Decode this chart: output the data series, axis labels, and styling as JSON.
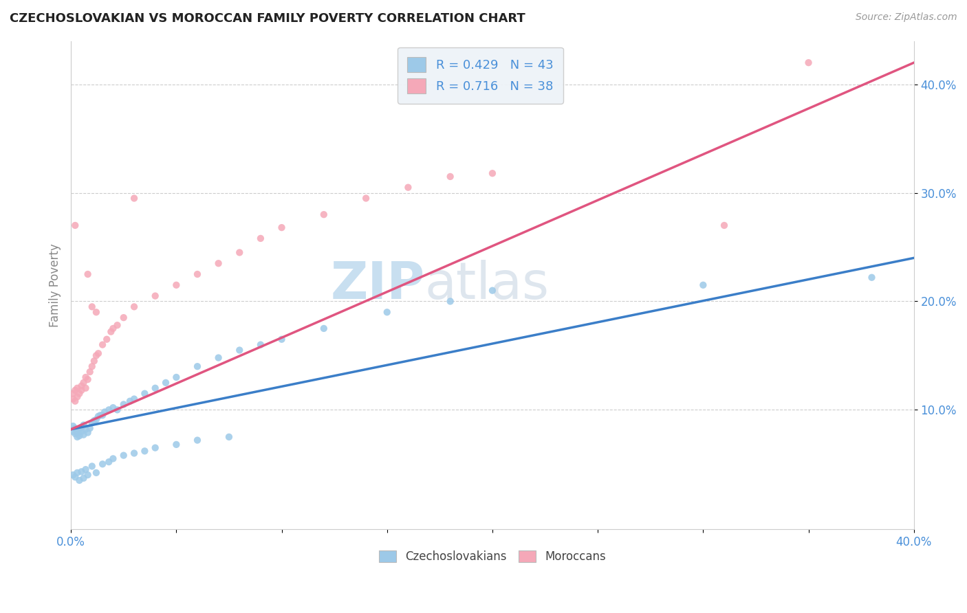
{
  "title": "CZECHOSLOVAKIAN VS MOROCCAN FAMILY POVERTY CORRELATION CHART",
  "source": "Source: ZipAtlas.com",
  "ylabel": "Family Poverty",
  "xlim": [
    0.0,
    0.4
  ],
  "ylim": [
    -0.01,
    0.44
  ],
  "yticks": [
    0.1,
    0.2,
    0.3,
    0.4
  ],
  "ytick_labels": [
    "10.0%",
    "20.0%",
    "30.0%",
    "40.0%"
  ],
  "xticks": [
    0.0,
    0.05,
    0.1,
    0.15,
    0.2,
    0.25,
    0.3,
    0.35,
    0.4
  ],
  "xtick_labels": [
    "0.0%",
    "",
    "",
    "",
    "",
    "",
    "",
    "",
    "40.0%"
  ],
  "czech_R": 0.429,
  "czech_N": 43,
  "moroccan_R": 0.716,
  "moroccan_N": 38,
  "czech_color": "#9DC9E8",
  "moroccan_color": "#F5A8B8",
  "czech_line_color": "#3B7EC8",
  "moroccan_line_color": "#E05580",
  "background_color": "#ffffff",
  "grid_color": "#cccccc",
  "title_color": "#222222",
  "axis_label_color": "#888888",
  "tick_label_color": "#4A90D9",
  "watermark_zip": "ZIP",
  "watermark_atlas": "atlas",
  "watermark_color": "#c8dff0",
  "legend_R_color": "#4A90D9",
  "legend_facecolor": "#eef3f8",
  "czech_line_x0": 0.0,
  "czech_line_y0": 0.082,
  "czech_line_x1": 0.4,
  "czech_line_y1": 0.24,
  "moroccan_line_x0": 0.0,
  "moroccan_line_y0": 0.082,
  "moroccan_line_x1": 0.4,
  "moroccan_line_y1": 0.42,
  "czech_x": [
    0.001,
    0.001,
    0.002,
    0.002,
    0.003,
    0.003,
    0.004,
    0.004,
    0.005,
    0.005,
    0.006,
    0.006,
    0.007,
    0.008,
    0.009,
    0.01,
    0.011,
    0.012,
    0.013,
    0.014,
    0.015,
    0.016,
    0.018,
    0.02,
    0.022,
    0.025,
    0.028,
    0.03,
    0.035,
    0.04,
    0.045,
    0.05,
    0.06,
    0.07,
    0.08,
    0.09,
    0.1,
    0.12,
    0.15,
    0.18,
    0.2,
    0.3,
    0.38
  ],
  "czech_y": [
    0.08,
    0.085,
    0.078,
    0.083,
    0.075,
    0.079,
    0.082,
    0.076,
    0.08,
    0.084,
    0.077,
    0.086,
    0.082,
    0.079,
    0.083,
    0.088,
    0.09,
    0.091,
    0.094,
    0.095,
    0.095,
    0.098,
    0.1,
    0.102,
    0.1,
    0.105,
    0.108,
    0.11,
    0.115,
    0.12,
    0.125,
    0.13,
    0.14,
    0.148,
    0.155,
    0.16,
    0.165,
    0.175,
    0.19,
    0.2,
    0.21,
    0.215,
    0.222
  ],
  "moroccan_x": [
    0.001,
    0.001,
    0.002,
    0.002,
    0.003,
    0.003,
    0.004,
    0.005,
    0.005,
    0.006,
    0.007,
    0.007,
    0.008,
    0.009,
    0.01,
    0.011,
    0.012,
    0.013,
    0.015,
    0.017,
    0.019,
    0.022,
    0.025,
    0.03,
    0.04,
    0.05,
    0.06,
    0.07,
    0.08,
    0.09,
    0.1,
    0.12,
    0.14,
    0.16,
    0.18,
    0.2,
    0.31,
    0.35
  ],
  "moroccan_y": [
    0.11,
    0.115,
    0.108,
    0.118,
    0.112,
    0.12,
    0.115,
    0.122,
    0.118,
    0.125,
    0.12,
    0.13,
    0.128,
    0.135,
    0.14,
    0.145,
    0.15,
    0.152,
    0.16,
    0.165,
    0.172,
    0.178,
    0.185,
    0.195,
    0.205,
    0.215,
    0.225,
    0.235,
    0.245,
    0.258,
    0.268,
    0.28,
    0.295,
    0.305,
    0.315,
    0.318,
    0.27,
    0.42
  ],
  "moroccan_outlier_x": [
    0.002,
    0.008,
    0.01,
    0.012,
    0.02,
    0.03
  ],
  "moroccan_outlier_y": [
    0.27,
    0.225,
    0.195,
    0.19,
    0.175,
    0.295
  ],
  "czech_low_x": [
    0.001,
    0.002,
    0.003,
    0.004,
    0.005,
    0.006,
    0.007,
    0.008,
    0.01,
    0.012,
    0.015,
    0.018,
    0.02,
    0.025,
    0.03,
    0.035,
    0.04,
    0.05,
    0.06,
    0.075
  ],
  "czech_low_y": [
    0.04,
    0.038,
    0.042,
    0.035,
    0.043,
    0.037,
    0.045,
    0.04,
    0.048,
    0.042,
    0.05,
    0.052,
    0.055,
    0.058,
    0.06,
    0.062,
    0.065,
    0.068,
    0.072,
    0.075
  ]
}
